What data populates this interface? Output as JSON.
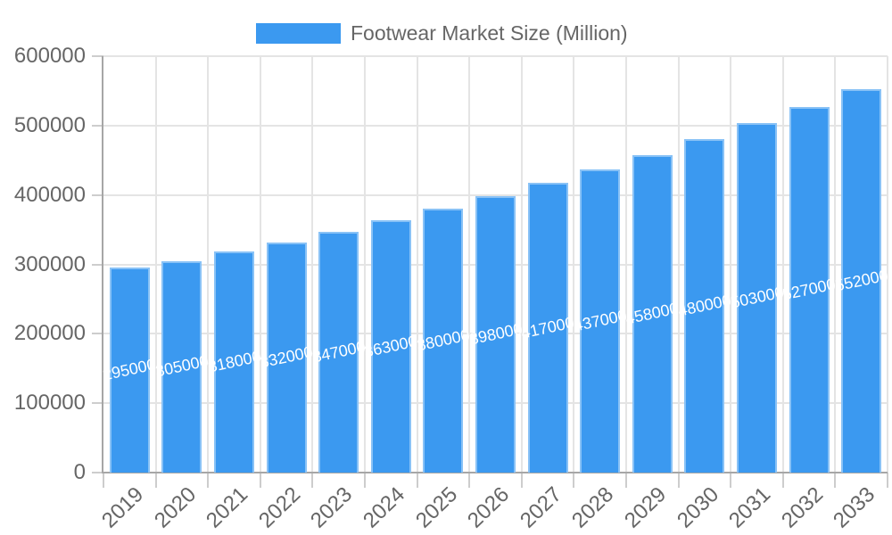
{
  "legend": {
    "label": "Footwear Market Size (Million)"
  },
  "colors": {
    "bar": "#3b99f0",
    "bar_border": "rgba(255,255,255,0.40)",
    "bar_value_text": "#ffffff",
    "grid": "#e4e4e4",
    "axis": "#a6a6a6",
    "tick": "#cdcdcd",
    "axis_text": "#666666"
  },
  "chart_data": {
    "type": "bar",
    "title": "",
    "legend_position": "top",
    "grid": true,
    "xlabel": "",
    "ylabel": "",
    "ylim": [
      0,
      600000
    ],
    "ytick_step": 100000,
    "yticks": [
      0,
      100000,
      200000,
      300000,
      400000,
      500000,
      600000
    ],
    "categories": [
      "2019",
      "2020",
      "2021",
      "2022",
      "2023",
      "2024",
      "2025",
      "2026",
      "2027",
      "2028",
      "2029",
      "2030",
      "2031",
      "2032",
      "2033"
    ],
    "series": [
      {
        "name": "Footwear Market Size (Million)",
        "values": [
          295000,
          305000,
          318000,
          332000,
          347000,
          363000,
          380000,
          398000,
          417000,
          437000,
          458000,
          480000,
          503000,
          527000,
          552000
        ]
      }
    ],
    "bar_value_labels_visible": true
  }
}
